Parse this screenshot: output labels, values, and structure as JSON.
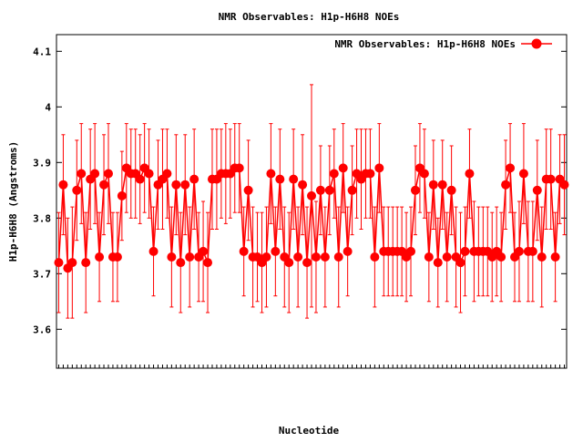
{
  "chart_data": {
    "type": "line",
    "title": "NMR Observables: H1p-H6H8 NOEs",
    "xlabel": "Nucleotide",
    "ylabel": "H1p-H6H8 (Angstroms)",
    "ylim": [
      3.53,
      4.13
    ],
    "yticks": [
      3.6,
      3.7,
      3.8,
      3.9,
      4,
      4.1
    ],
    "ytick_labels": [
      "3.6",
      "3.7",
      "3.8",
      "3.9",
      "4",
      "4.1"
    ],
    "grid": false,
    "legend_position": "top-right",
    "series": [
      {
        "name": "NMR Observables: H1p-H6H8 NOEs",
        "color": "#ff0000",
        "marker": "circle",
        "y": [
          3.72,
          3.86,
          3.71,
          3.72,
          3.85,
          3.88,
          3.72,
          3.87,
          3.88,
          3.73,
          3.86,
          3.88,
          3.73,
          3.73,
          3.84,
          3.89,
          3.88,
          3.88,
          3.87,
          3.89,
          3.88,
          3.74,
          3.86,
          3.87,
          3.88,
          3.73,
          3.86,
          3.72,
          3.86,
          3.73,
          3.87,
          3.73,
          3.74,
          3.72,
          3.87,
          3.87,
          3.88,
          3.88,
          3.88,
          3.89,
          3.89,
          3.74,
          3.85,
          3.73,
          3.73,
          3.72,
          3.73,
          3.88,
          3.74,
          3.87,
          3.73,
          3.72,
          3.87,
          3.73,
          3.86,
          3.72,
          3.84,
          3.73,
          3.85,
          3.73,
          3.85,
          3.88,
          3.73,
          3.89,
          3.74,
          3.85,
          3.88,
          3.87,
          3.88,
          3.88,
          3.73,
          3.89,
          3.74,
          3.74,
          3.74,
          3.74,
          3.74,
          3.73,
          3.74,
          3.85,
          3.89,
          3.88,
          3.73,
          3.86,
          3.72,
          3.86,
          3.73,
          3.85,
          3.73,
          3.72,
          3.74,
          3.88,
          3.74,
          3.74,
          3.74,
          3.74,
          3.73,
          3.74,
          3.73,
          3.86,
          3.89,
          3.73,
          3.74,
          3.88,
          3.74,
          3.74,
          3.85,
          3.73,
          3.87,
          3.87,
          3.73,
          3.87,
          3.86
        ],
        "err": [
          0.09,
          0.09,
          0.09,
          0.1,
          0.09,
          0.09,
          0.09,
          0.09,
          0.09,
          0.08,
          0.09,
          0.09,
          0.08,
          0.08,
          0.08,
          0.08,
          0.08,
          0.08,
          0.08,
          0.08,
          0.08,
          0.08,
          0.08,
          0.09,
          0.08,
          0.09,
          0.09,
          0.09,
          0.09,
          0.09,
          0.09,
          0.08,
          0.09,
          0.09,
          0.09,
          0.09,
          0.08,
          0.09,
          0.08,
          0.08,
          0.08,
          0.08,
          0.09,
          0.09,
          0.08,
          0.09,
          0.09,
          0.09,
          0.08,
          0.09,
          0.09,
          0.09,
          0.09,
          0.09,
          0.09,
          0.1,
          0.2,
          0.1,
          0.08,
          0.09,
          0.08,
          0.08,
          0.09,
          0.08,
          0.08,
          0.08,
          0.08,
          0.09,
          0.08,
          0.08,
          0.09,
          0.08,
          0.08,
          0.08,
          0.08,
          0.08,
          0.08,
          0.08,
          0.08,
          0.08,
          0.08,
          0.08,
          0.08,
          0.08,
          0.08,
          0.08,
          0.08,
          0.08,
          0.09,
          0.09,
          0.08,
          0.08,
          0.09,
          0.08,
          0.08,
          0.08,
          0.08,
          0.08,
          0.08,
          0.08,
          0.08,
          0.08,
          0.09,
          0.09,
          0.09,
          0.09,
          0.09,
          0.09,
          0.09,
          0.09,
          0.08,
          0.08,
          0.09
        ]
      }
    ]
  }
}
